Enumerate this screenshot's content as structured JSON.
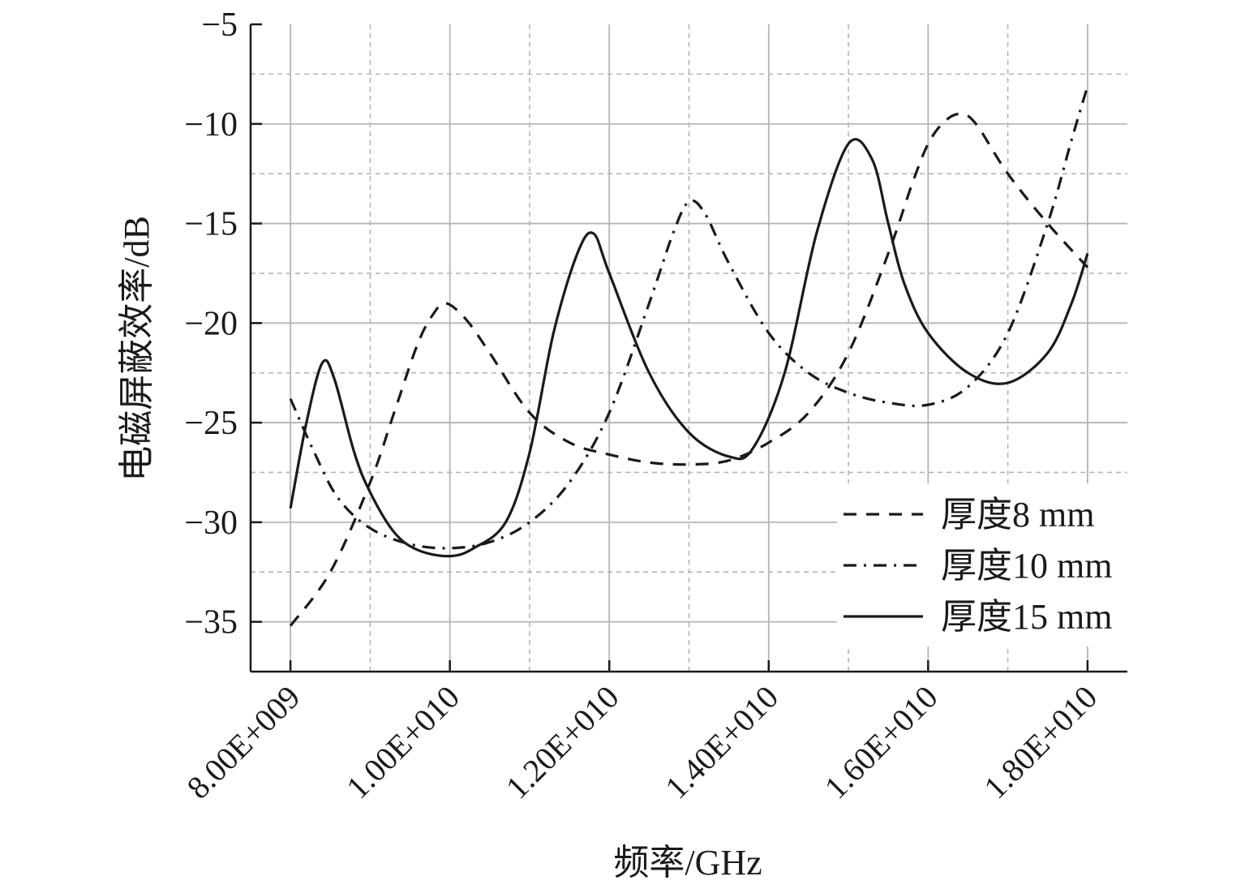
{
  "chart_data": {
    "type": "line",
    "xlabel": "频率/GHz",
    "ylabel": "电磁屏蔽效率/dB",
    "xlim": [
      7500000000.0,
      18500000000.0
    ],
    "ylim": [
      -37.5,
      -5
    ],
    "x_ticks": [
      8000000000.0,
      10000000000.0,
      12000000000.0,
      14000000000.0,
      16000000000.0,
      18000000000.0
    ],
    "x_tick_labels": [
      "8.00E+009",
      "1.00E+010",
      "1.20E+010",
      "1.40E+010",
      "1.60E+010",
      "1.80E+010"
    ],
    "y_ticks": [
      -35,
      -30,
      -25,
      -20,
      -15,
      -10,
      -5
    ],
    "y_tick_labels": [
      "−35",
      "−30",
      "−25",
      "−20",
      "−15",
      "−10",
      "−5"
    ],
    "grid": true,
    "legend_position": "bottom-right",
    "series": [
      {
        "name": "厚度8 mm",
        "style": "dashed",
        "color": "#1a1a1a",
        "x": [
          8000000000.0,
          8500000000.0,
          9000000000.0,
          9300000000.0,
          9600000000.0,
          9800000000.0,
          9950000000.0,
          10200000000.0,
          10500000000.0,
          11000000000.0,
          11500000000.0,
          12000000000.0,
          12500000000.0,
          13000000000.0,
          13500000000.0,
          14000000000.0,
          14500000000.0,
          15000000000.0,
          15500000000.0,
          15800000000.0,
          16000000000.0,
          16200000000.0,
          16400000000.0,
          16600000000.0,
          17000000000.0,
          17500000000.0,
          18000000000.0
        ],
        "y": [
          -35.2,
          -32.5,
          -28.0,
          -24.5,
          -21.0,
          -19.5,
          -19.0,
          -19.8,
          -21.5,
          -24.5,
          -26.0,
          -26.6,
          -27.0,
          -27.1,
          -26.9,
          -26.0,
          -24.5,
          -21.5,
          -16.5,
          -13.0,
          -11.0,
          -9.9,
          -9.5,
          -10.0,
          -12.5,
          -15.0,
          -17.2
        ]
      },
      {
        "name": "厚度10 mm",
        "style": "dash-dot",
        "color": "#1a1a1a",
        "x": [
          8000000000.0,
          8300000000.0,
          8600000000.0,
          9000000000.0,
          9500000000.0,
          10000000000.0,
          10500000000.0,
          11000000000.0,
          11500000000.0,
          12000000000.0,
          12500000000.0,
          12800000000.0,
          13000000000.0,
          13200000000.0,
          13500000000.0,
          14000000000.0,
          14500000000.0,
          15000000000.0,
          15500000000.0,
          16000000000.0,
          16500000000.0,
          17000000000.0,
          17500000000.0,
          17800000000.0,
          18000000000.0
        ],
        "y": [
          -23.8,
          -26.5,
          -28.8,
          -30.3,
          -31.1,
          -31.3,
          -31.0,
          -30.0,
          -28.0,
          -24.5,
          -19.0,
          -15.5,
          -13.9,
          -14.5,
          -17.0,
          -20.5,
          -22.5,
          -23.5,
          -24.0,
          -24.1,
          -23.2,
          -20.5,
          -15.0,
          -10.8,
          -8.1
        ]
      },
      {
        "name": "厚度15 mm",
        "style": "solid",
        "color": "#1a1a1a",
        "x": [
          8000000000.0,
          8200000000.0,
          8400000000.0,
          8550000000.0,
          8800000000.0,
          9000000000.0,
          9300000000.0,
          9600000000.0,
          10000000000.0,
          10300000000.0,
          10700000000.0,
          11000000000.0,
          11300000000.0,
          11600000000.0,
          11800000000.0,
          12000000000.0,
          12500000000.0,
          13000000000.0,
          13500000000.0,
          13800000000.0,
          14200000000.0,
          14600000000.0,
          15000000000.0,
          15300000000.0,
          15500000000.0,
          15700000000.0,
          16000000000.0,
          16500000000.0,
          17000000000.0,
          17500000000.0,
          17800000000.0,
          18000000000.0
        ],
        "y": [
          -29.3,
          -25.0,
          -22.0,
          -22.8,
          -26.5,
          -28.5,
          -30.5,
          -31.4,
          -31.7,
          -31.3,
          -30.0,
          -26.5,
          -20.5,
          -16.5,
          -15.5,
          -17.5,
          -22.5,
          -25.5,
          -26.7,
          -26.3,
          -22.5,
          -15.5,
          -11.0,
          -11.8,
          -15.0,
          -18.0,
          -20.5,
          -22.5,
          -23.0,
          -21.5,
          -19.0,
          -16.5
        ]
      }
    ]
  }
}
